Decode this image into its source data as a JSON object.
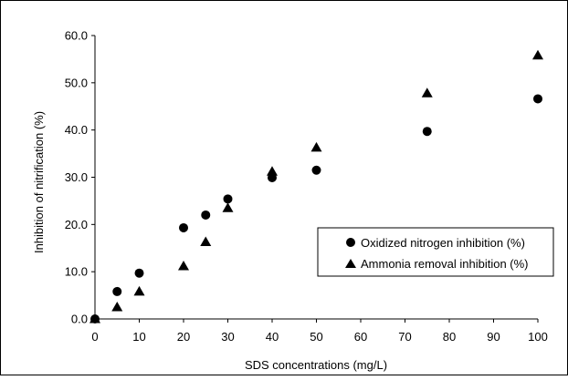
{
  "chart_data": {
    "type": "scatter",
    "title": "",
    "xlabel": "SDS concentrations (mg/L)",
    "ylabel": "Inhibition of nitrification (%)",
    "xlim": [
      0,
      100
    ],
    "ylim": [
      0,
      60
    ],
    "x_ticks": [
      "0",
      "10",
      "20",
      "30",
      "40",
      "50",
      "60",
      "70",
      "80",
      "90",
      "100"
    ],
    "y_ticks": [
      "0.0",
      "10.0",
      "20.0",
      "30.0",
      "40.0",
      "50.0",
      "60.0"
    ],
    "grid": false,
    "legend_position": "lower-right",
    "series": [
      {
        "name": "Oxidized nitrogen inhibition (%)",
        "marker": "circle",
        "x": [
          0,
          5,
          10,
          20,
          25,
          30,
          40,
          50,
          75,
          100
        ],
        "y": [
          0.0,
          5.8,
          9.7,
          19.3,
          22.0,
          25.4,
          29.9,
          31.5,
          39.7,
          46.6
        ]
      },
      {
        "name": "Ammonia removal inhibition (%)",
        "marker": "triangle",
        "x": [
          0,
          5,
          10,
          20,
          25,
          30,
          40,
          50,
          75,
          100
        ],
        "y": [
          0.0,
          2.5,
          5.8,
          11.2,
          16.3,
          23.5,
          31.2,
          36.3,
          47.8,
          55.8
        ]
      }
    ]
  }
}
